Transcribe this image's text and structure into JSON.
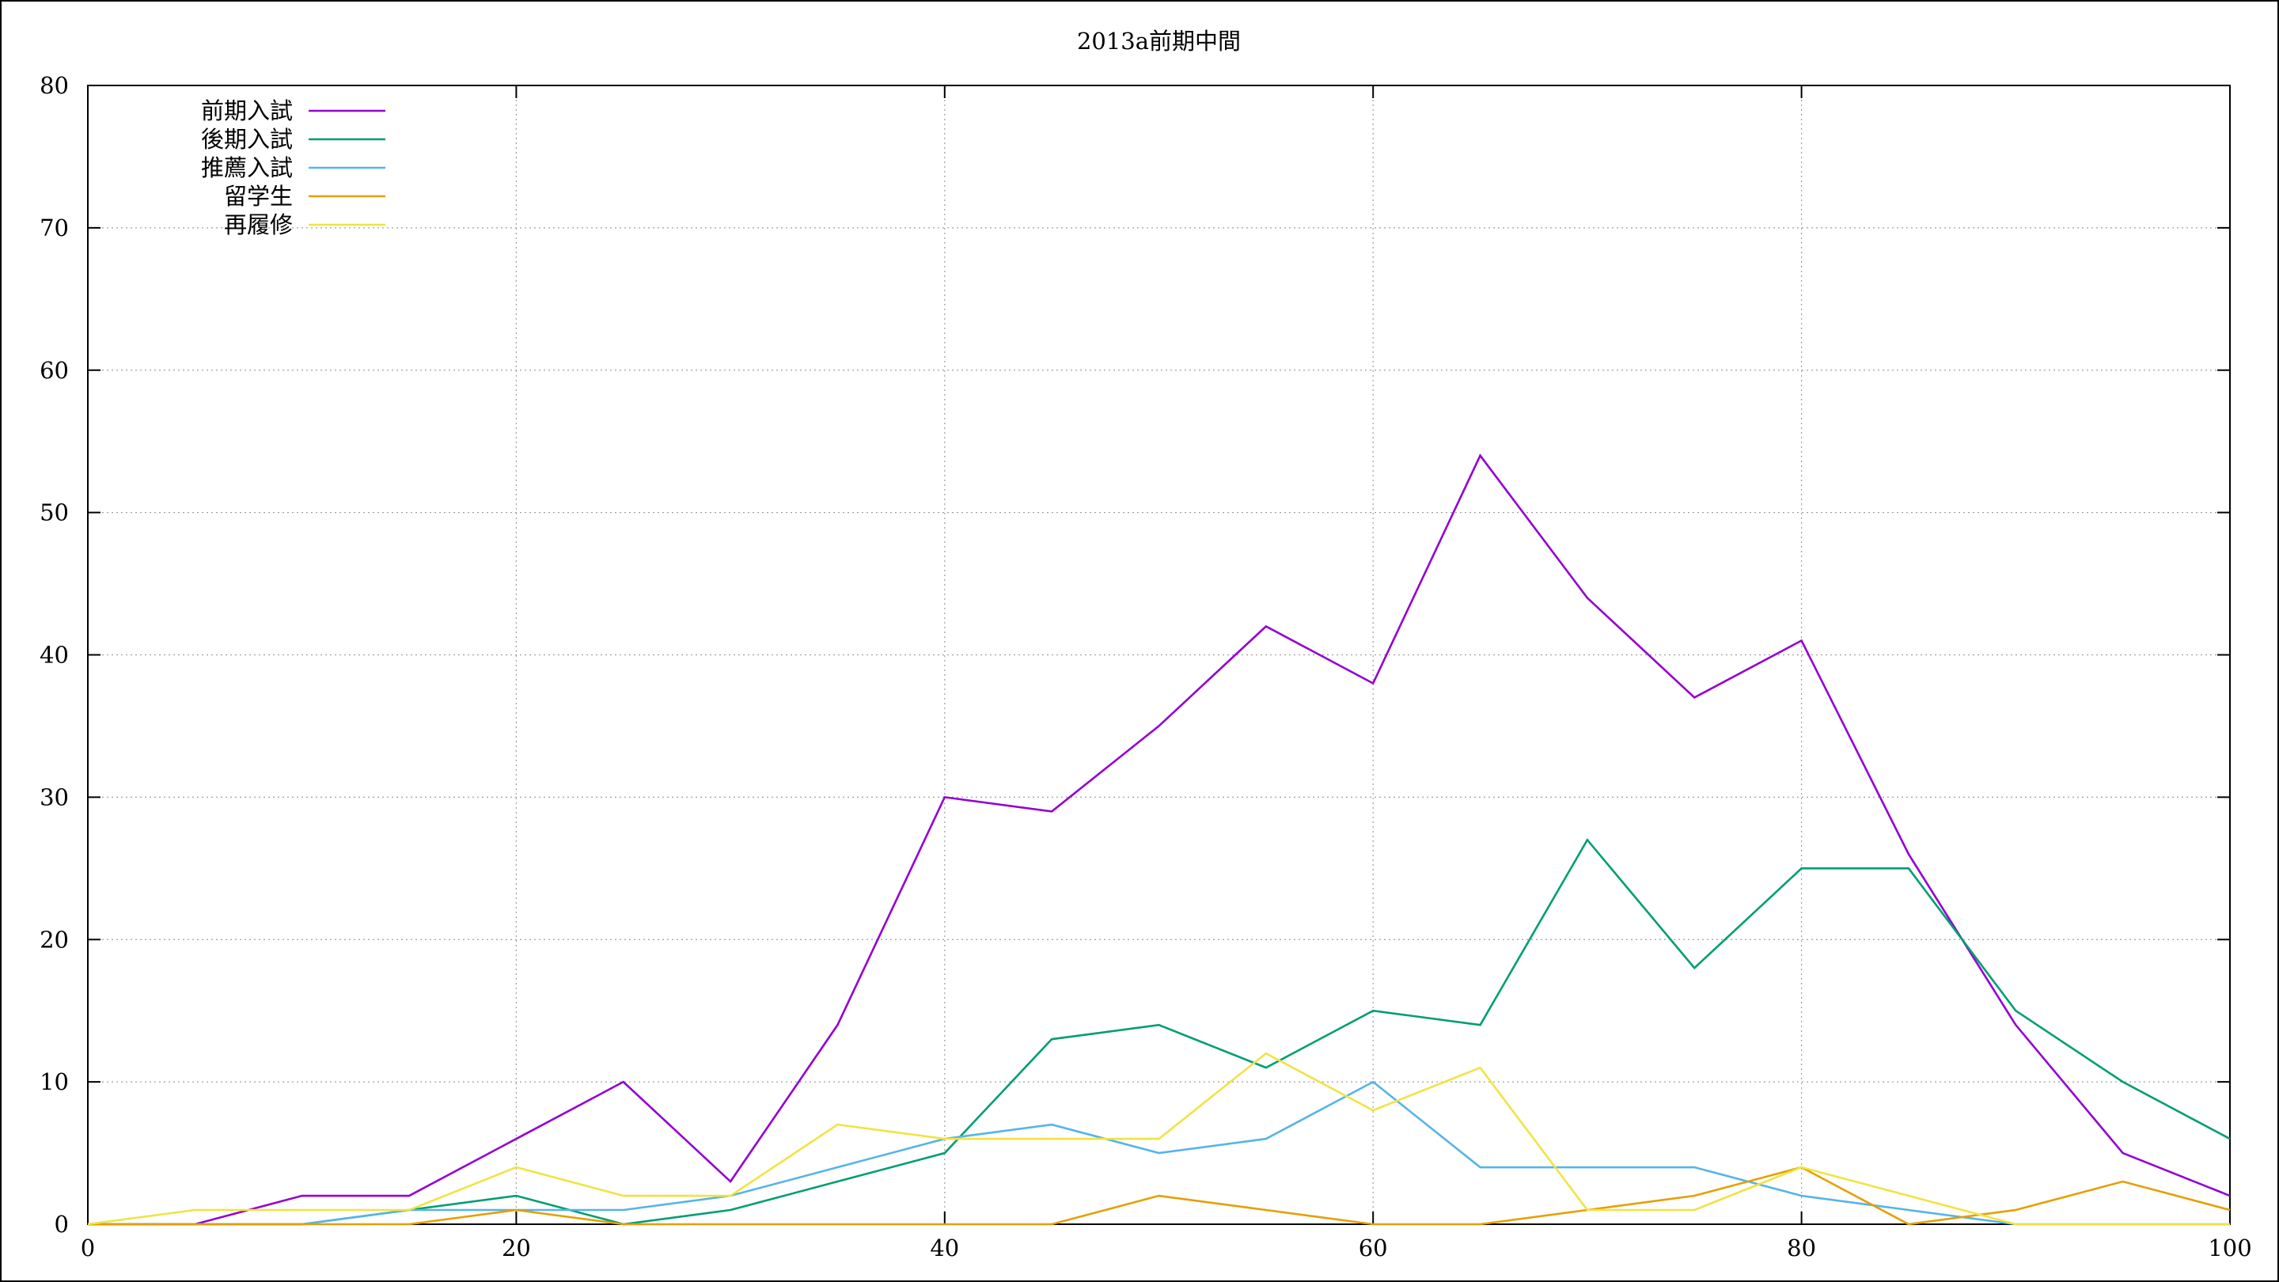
{
  "chart_data": {
    "type": "line",
    "title": "2013a前期中間",
    "xlabel": "",
    "ylabel": "",
    "xlim": [
      0,
      100
    ],
    "ylim": [
      0,
      80
    ],
    "xticks": [
      "0",
      "20",
      "40",
      "60",
      "80",
      "100"
    ],
    "yticks": [
      "0",
      "10",
      "20",
      "30",
      "40",
      "50",
      "60",
      "70",
      "80"
    ],
    "grid": true,
    "legend_position": "top-left",
    "x": [
      0,
      5,
      10,
      15,
      20,
      25,
      30,
      35,
      40,
      45,
      50,
      55,
      60,
      65,
      70,
      75,
      80,
      85,
      90,
      95,
      100
    ],
    "series": [
      {
        "name": "前期入試",
        "color": "#9400d3",
        "values": [
          0,
          0,
          2,
          2,
          6,
          10,
          3,
          14,
          30,
          29,
          35,
          42,
          38,
          54,
          44,
          37,
          41,
          26,
          14,
          5,
          2
        ]
      },
      {
        "name": "後期入試",
        "color": "#009e73",
        "values": [
          0,
          0,
          0,
          1,
          2,
          0,
          1,
          3,
          5,
          13,
          14,
          11,
          15,
          14,
          27,
          18,
          25,
          25,
          15,
          10,
          6
        ]
      },
      {
        "name": "推薦入試",
        "color": "#56b4e9",
        "values": [
          0,
          0,
          0,
          1,
          1,
          1,
          2,
          4,
          6,
          7,
          5,
          6,
          10,
          4,
          4,
          4,
          2,
          1,
          0,
          0,
          0
        ]
      },
      {
        "name": "留学生",
        "color": "#e69f00",
        "values": [
          0,
          0,
          0,
          0,
          1,
          0,
          0,
          0,
          0,
          0,
          2,
          1,
          0,
          0,
          1,
          2,
          4,
          0,
          1,
          3,
          1
        ]
      },
      {
        "name": "再履修",
        "color": "#f0e442",
        "values": [
          0,
          1,
          1,
          1,
          4,
          2,
          2,
          7,
          6,
          6,
          6,
          12,
          8,
          11,
          1,
          1,
          4,
          2,
          0,
          0,
          0
        ]
      }
    ]
  }
}
